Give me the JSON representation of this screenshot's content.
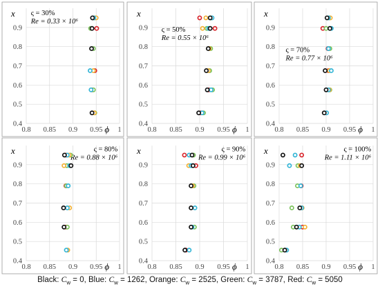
{
  "colors": {
    "Black": "#111111",
    "Blue": "#33b5d6",
    "Orange": "#f2b134",
    "Green": "#7cc35c",
    "Red": "#d9262c"
  },
  "caption": {
    "prefix": "Black: ",
    "sym": "C",
    "sub": "w",
    "entries": [
      {
        "label": "Black",
        "value": "0"
      },
      {
        "label": "Blue",
        "value": "1262"
      },
      {
        "label": "Orange",
        "value": "2525"
      },
      {
        "label": "Green",
        "value": "3787"
      },
      {
        "label": "Red",
        "value": "5050"
      }
    ]
  },
  "chart_data": [
    {
      "type": "scatter",
      "annotation": {
        "varsigma": "ς = 30%",
        "re": "Re = 0.33 × 10⁶"
      },
      "ylabel": "x",
      "xlabel": "ϕ",
      "xlim": [
        0.8,
        1.0
      ],
      "ylim": [
        0.4,
        1.0
      ],
      "xticks": [
        "0.8",
        "0.85",
        "0.9",
        "0.95",
        "1"
      ],
      "yticks": [
        "0.4",
        "0.5",
        "0.6",
        "0.7",
        "0.8",
        "0.9"
      ],
      "series": [
        {
          "name": "Black",
          "points": [
            [
              0.942,
              0.95
            ],
            [
              0.941,
              0.895
            ],
            [
              0.94,
              0.79
            ],
            [
              0.941,
              0.455
            ]
          ]
        },
        {
          "name": "Blue",
          "points": [
            [
              0.945,
              0.95
            ],
            [
              0.937,
              0.675
            ],
            [
              0.939,
              0.575
            ]
          ]
        },
        {
          "name": "Orange",
          "points": [
            [
              0.95,
              0.95
            ],
            [
              0.944,
              0.675
            ],
            [
              0.946,
              0.455
            ]
          ]
        },
        {
          "name": "Green",
          "points": [
            [
              0.947,
              0.95
            ],
            [
              0.938,
              0.895
            ],
            [
              0.944,
              0.79
            ],
            [
              0.944,
              0.575
            ],
            [
              0.947,
              0.455
            ]
          ]
        },
        {
          "name": "Red",
          "points": [
            [
              0.943,
              0.95
            ],
            [
              0.951,
              0.895
            ],
            [
              0.947,
              0.675
            ],
            [
              0.941,
              0.575
            ]
          ]
        }
      ]
    },
    {
      "type": "scatter",
      "annotation": {
        "varsigma": "ς = 50%",
        "re": "Re = 0.55 × 10⁶"
      },
      "ylabel": "x",
      "xlabel": "ϕ",
      "xlim": [
        0.8,
        1.0
      ],
      "ylim": [
        0.4,
        1.0
      ],
      "xticks": [
        "0.8",
        "0.85",
        "0.9",
        "0.95",
        "1"
      ],
      "yticks": [
        "0.4",
        "0.5",
        "0.6",
        "0.7",
        "0.8",
        "0.9"
      ],
      "series": [
        {
          "name": "Black",
          "points": [
            [
              0.922,
              0.95
            ],
            [
              0.922,
              0.895
            ],
            [
              0.918,
              0.79
            ],
            [
              0.914,
              0.675
            ],
            [
              0.916,
              0.575
            ],
            [
              0.898,
              0.455
            ]
          ]
        },
        {
          "name": "Blue",
          "points": [
            [
              0.926,
              0.95
            ],
            [
              0.919,
              0.895
            ],
            [
              0.924,
              0.575
            ],
            [
              0.905,
              0.455
            ]
          ]
        },
        {
          "name": "Orange",
          "points": [
            [
              0.913,
              0.95
            ],
            [
              0.906,
              0.895
            ],
            [
              0.92,
              0.79
            ],
            [
              0.918,
              0.675
            ]
          ]
        },
        {
          "name": "Green",
          "points": [
            [
              0.924,
              0.95
            ],
            [
              0.915,
              0.895
            ],
            [
              0.923,
              0.79
            ],
            [
              0.921,
              0.675
            ],
            [
              0.927,
              0.575
            ],
            [
              0.908,
              0.455
            ]
          ]
        },
        {
          "name": "Red",
          "points": [
            [
              0.9,
              0.95
            ],
            [
              0.932,
              0.895
            ],
            [
              0.919,
              0.575
            ],
            [
              0.902,
              0.455
            ]
          ]
        }
      ]
    },
    {
      "type": "scatter",
      "annotation": {
        "varsigma": "ς = 70%",
        "re": "Re = 0.77 × 10⁶"
      },
      "ylabel": "x",
      "xlabel": "ϕ",
      "xlim": [
        0.8,
        1.0
      ],
      "ylim": [
        0.4,
        1.0
      ],
      "xticks": [
        "0.8",
        "0.85",
        "0.9",
        "0.95",
        "1"
      ],
      "yticks": [
        "0.4",
        "0.5",
        "0.6",
        "0.7",
        "0.8",
        "0.9"
      ],
      "series": [
        {
          "name": "Black",
          "points": [
            [
              0.902,
              0.95
            ],
            [
              0.908,
              0.895
            ],
            [
              0.898,
              0.675
            ],
            [
              0.9,
              0.575
            ],
            [
              0.896,
              0.455
            ]
          ]
        },
        {
          "name": "Blue",
          "points": [
            [
              0.905,
              0.95
            ],
            [
              0.911,
              0.895
            ],
            [
              0.905,
              0.79
            ],
            [
              0.911,
              0.675
            ],
            [
              0.905,
              0.575
            ],
            [
              0.901,
              0.455
            ]
          ]
        },
        {
          "name": "Orange",
          "points": [
            [
              0.909,
              0.95
            ],
            [
              0.907,
              0.675
            ],
            [
              0.907,
              0.575
            ]
          ]
        },
        {
          "name": "Green",
          "points": [
            [
              0.907,
              0.95
            ],
            [
              0.9,
              0.895
            ],
            [
              0.908,
              0.79
            ],
            [
              0.908,
              0.575
            ]
          ]
        },
        {
          "name": "Red",
          "points": [
            [
              0.893,
              0.895
            ],
            [
              0.904,
              0.79
            ],
            [
              0.905,
              0.675
            ]
          ]
        }
      ]
    },
    {
      "type": "scatter",
      "annotation": {
        "varsigma": "ς = 80%",
        "re": "Re = 0.88 × 10⁶"
      },
      "ylabel": "x",
      "xlabel": "ϕ",
      "xlim": [
        0.8,
        1.0
      ],
      "ylim": [
        0.4,
        1.0
      ],
      "xticks": [
        "0.8",
        "0.85",
        "0.9",
        "0.95",
        "1"
      ],
      "yticks": [
        "0.4",
        "0.5",
        "0.6",
        "0.7",
        "0.8",
        "0.9"
      ],
      "series": [
        {
          "name": "Black",
          "points": [
            [
              0.882,
              0.95
            ],
            [
              0.896,
              0.895
            ],
            [
              0.88,
              0.675
            ],
            [
              0.881,
              0.575
            ]
          ]
        },
        {
          "name": "Blue",
          "points": [
            [
              0.888,
              0.95
            ],
            [
              0.893,
              0.895
            ],
            [
              0.89,
              0.79
            ],
            [
              0.888,
              0.675
            ],
            [
              0.886,
              0.455
            ]
          ]
        },
        {
          "name": "Orange",
          "points": [
            [
              0.892,
              0.95
            ],
            [
              0.881,
              0.895
            ],
            [
              0.893,
              0.675
            ],
            [
              0.889,
              0.455
            ]
          ]
        },
        {
          "name": "Green",
          "points": [
            [
              0.895,
              0.95
            ],
            [
              0.887,
              0.895
            ],
            [
              0.886,
              0.79
            ],
            [
              0.888,
              0.575
            ]
          ]
        },
        {
          "name": "Red",
          "points": [
            [
              0.885,
              0.95
            ],
            [
              0.885,
              0.79
            ],
            [
              0.885,
              0.575
            ]
          ]
        }
      ]
    },
    {
      "type": "scatter",
      "annotation": {
        "varsigma": "ς = 90%",
        "re": "Re = 0.99 × 10⁶"
      },
      "ylabel": "x",
      "xlabel": "ϕ",
      "xlim": [
        0.8,
        1.0
      ],
      "ylim": [
        0.4,
        1.0
      ],
      "xticks": [
        "0.8",
        "0.85",
        "0.9",
        "0.95",
        "1"
      ],
      "yticks": [
        "0.4",
        "0.5",
        "0.6",
        "0.7",
        "0.8",
        "0.9"
      ],
      "series": [
        {
          "name": "Black",
          "points": [
            [
              0.884,
              0.95
            ],
            [
              0.886,
              0.895
            ],
            [
              0.882,
              0.79
            ],
            [
              0.882,
              0.675
            ],
            [
              0.882,
              0.575
            ],
            [
              0.869,
              0.455
            ]
          ]
        },
        {
          "name": "Blue",
          "points": [
            [
              0.878,
              0.95
            ],
            [
              0.882,
              0.895
            ],
            [
              0.89,
              0.675
            ],
            [
              0.884,
              0.575
            ],
            [
              0.878,
              0.455
            ]
          ]
        },
        {
          "name": "Orange",
          "points": [
            [
              0.877,
              0.895
            ],
            [
              0.885,
              0.79
            ]
          ]
        },
        {
          "name": "Green",
          "points": [
            [
              0.887,
              0.95
            ],
            [
              0.888,
              0.79
            ],
            [
              0.889,
              0.575
            ]
          ]
        },
        {
          "name": "Red",
          "points": [
            [
              0.868,
              0.95
            ],
            [
              0.892,
              0.895
            ],
            [
              0.871,
              0.455
            ]
          ]
        }
      ]
    },
    {
      "type": "scatter",
      "annotation": {
        "varsigma": "ς = 100%",
        "re": "Re = 1.11 × 10⁶"
      },
      "ylabel": "x",
      "xlabel": "ϕ",
      "xlim": [
        0.8,
        1.0
      ],
      "ylim": [
        0.4,
        1.0
      ],
      "xticks": [
        "0.8",
        "0.85",
        "0.9",
        "0.95",
        "1"
      ],
      "yticks": [
        "0.4",
        "0.5",
        "0.6",
        "0.7",
        "0.8",
        "0.9"
      ],
      "series": [
        {
          "name": "Black",
          "points": [
            [
              0.808,
              0.95
            ],
            [
              0.848,
              0.895
            ],
            [
              0.844,
              0.675
            ],
            [
              0.837,
              0.575
            ],
            [
              0.812,
              0.455
            ]
          ]
        },
        {
          "name": "Blue",
          "points": [
            [
              0.834,
              0.95
            ],
            [
              0.822,
              0.895
            ],
            [
              0.846,
              0.79
            ],
            [
              0.848,
              0.675
            ],
            [
              0.843,
              0.575
            ],
            [
              0.816,
              0.455
            ]
          ]
        },
        {
          "name": "Orange",
          "points": [
            [
              0.845,
              0.895
            ],
            [
              0.849,
              0.675
            ],
            [
              0.855,
              0.575
            ]
          ]
        },
        {
          "name": "Green",
          "points": [
            [
              0.84,
              0.895
            ],
            [
              0.839,
              0.79
            ],
            [
              0.827,
              0.675
            ],
            [
              0.83,
              0.575
            ],
            [
              0.805,
              0.455
            ]
          ]
        },
        {
          "name": "Red",
          "points": [
            [
              0.848,
              0.95
            ],
            [
              0.847,
              0.79
            ],
            [
              0.85,
              0.575
            ]
          ]
        }
      ]
    }
  ]
}
